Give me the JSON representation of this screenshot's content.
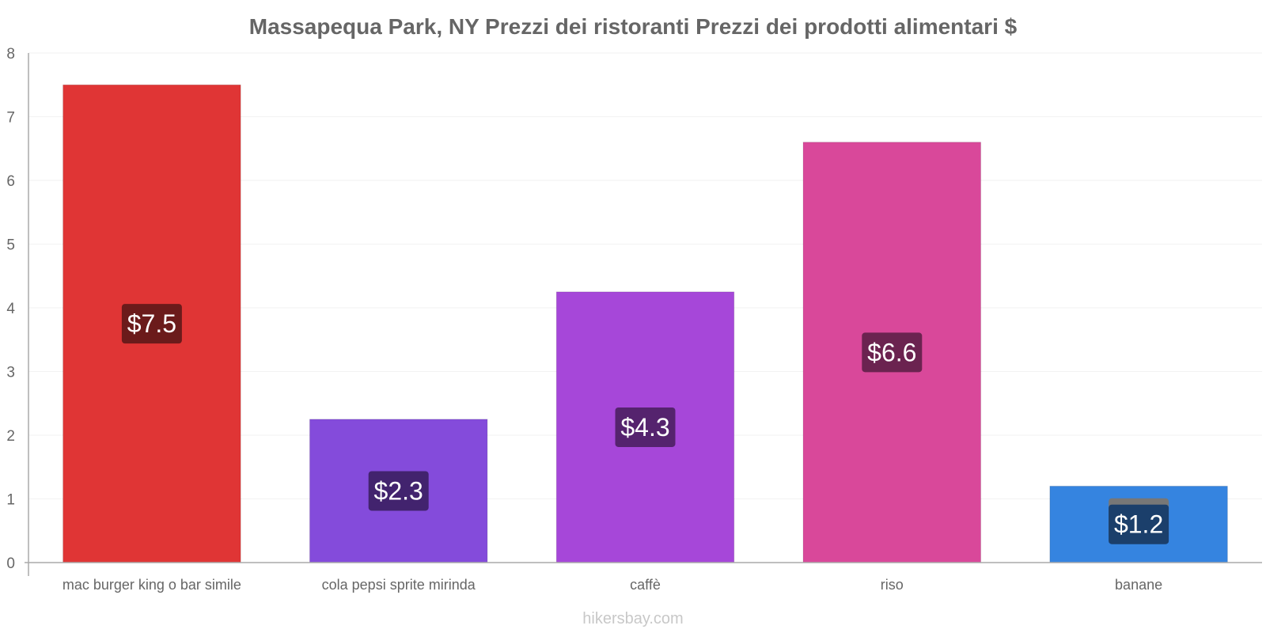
{
  "chart_data": {
    "type": "bar",
    "title": "Massapequa Park, NY Prezzi dei ristoranti Prezzi dei prodotti alimentari $",
    "categories": [
      "mac burger king o bar simile",
      "cola pepsi sprite mirinda",
      "caffè",
      "riso",
      "banane"
    ],
    "values": [
      7.5,
      2.25,
      4.25,
      6.6,
      1.2
    ],
    "data_labels": [
      "$7.5",
      "$2.3",
      "$4.3",
      "$6.6",
      "$1.2"
    ],
    "colors": [
      "#e03535",
      "#844bdb",
      "#a647d9",
      "#d9489a",
      "#3584e0"
    ],
    "label_bg_colors": [
      "#6b1b1b",
      "#42236e",
      "#55236e",
      "#6b2350",
      "#1b3f6b"
    ],
    "y_ticks": [
      "0",
      "1",
      "2",
      "3",
      "4",
      "5",
      "6",
      "7",
      "8"
    ],
    "ylim": [
      0,
      8
    ],
    "xlabel": "",
    "ylabel": "",
    "grid": true,
    "legend": "none"
  },
  "footer": {
    "credit": "hikersbay.com"
  }
}
